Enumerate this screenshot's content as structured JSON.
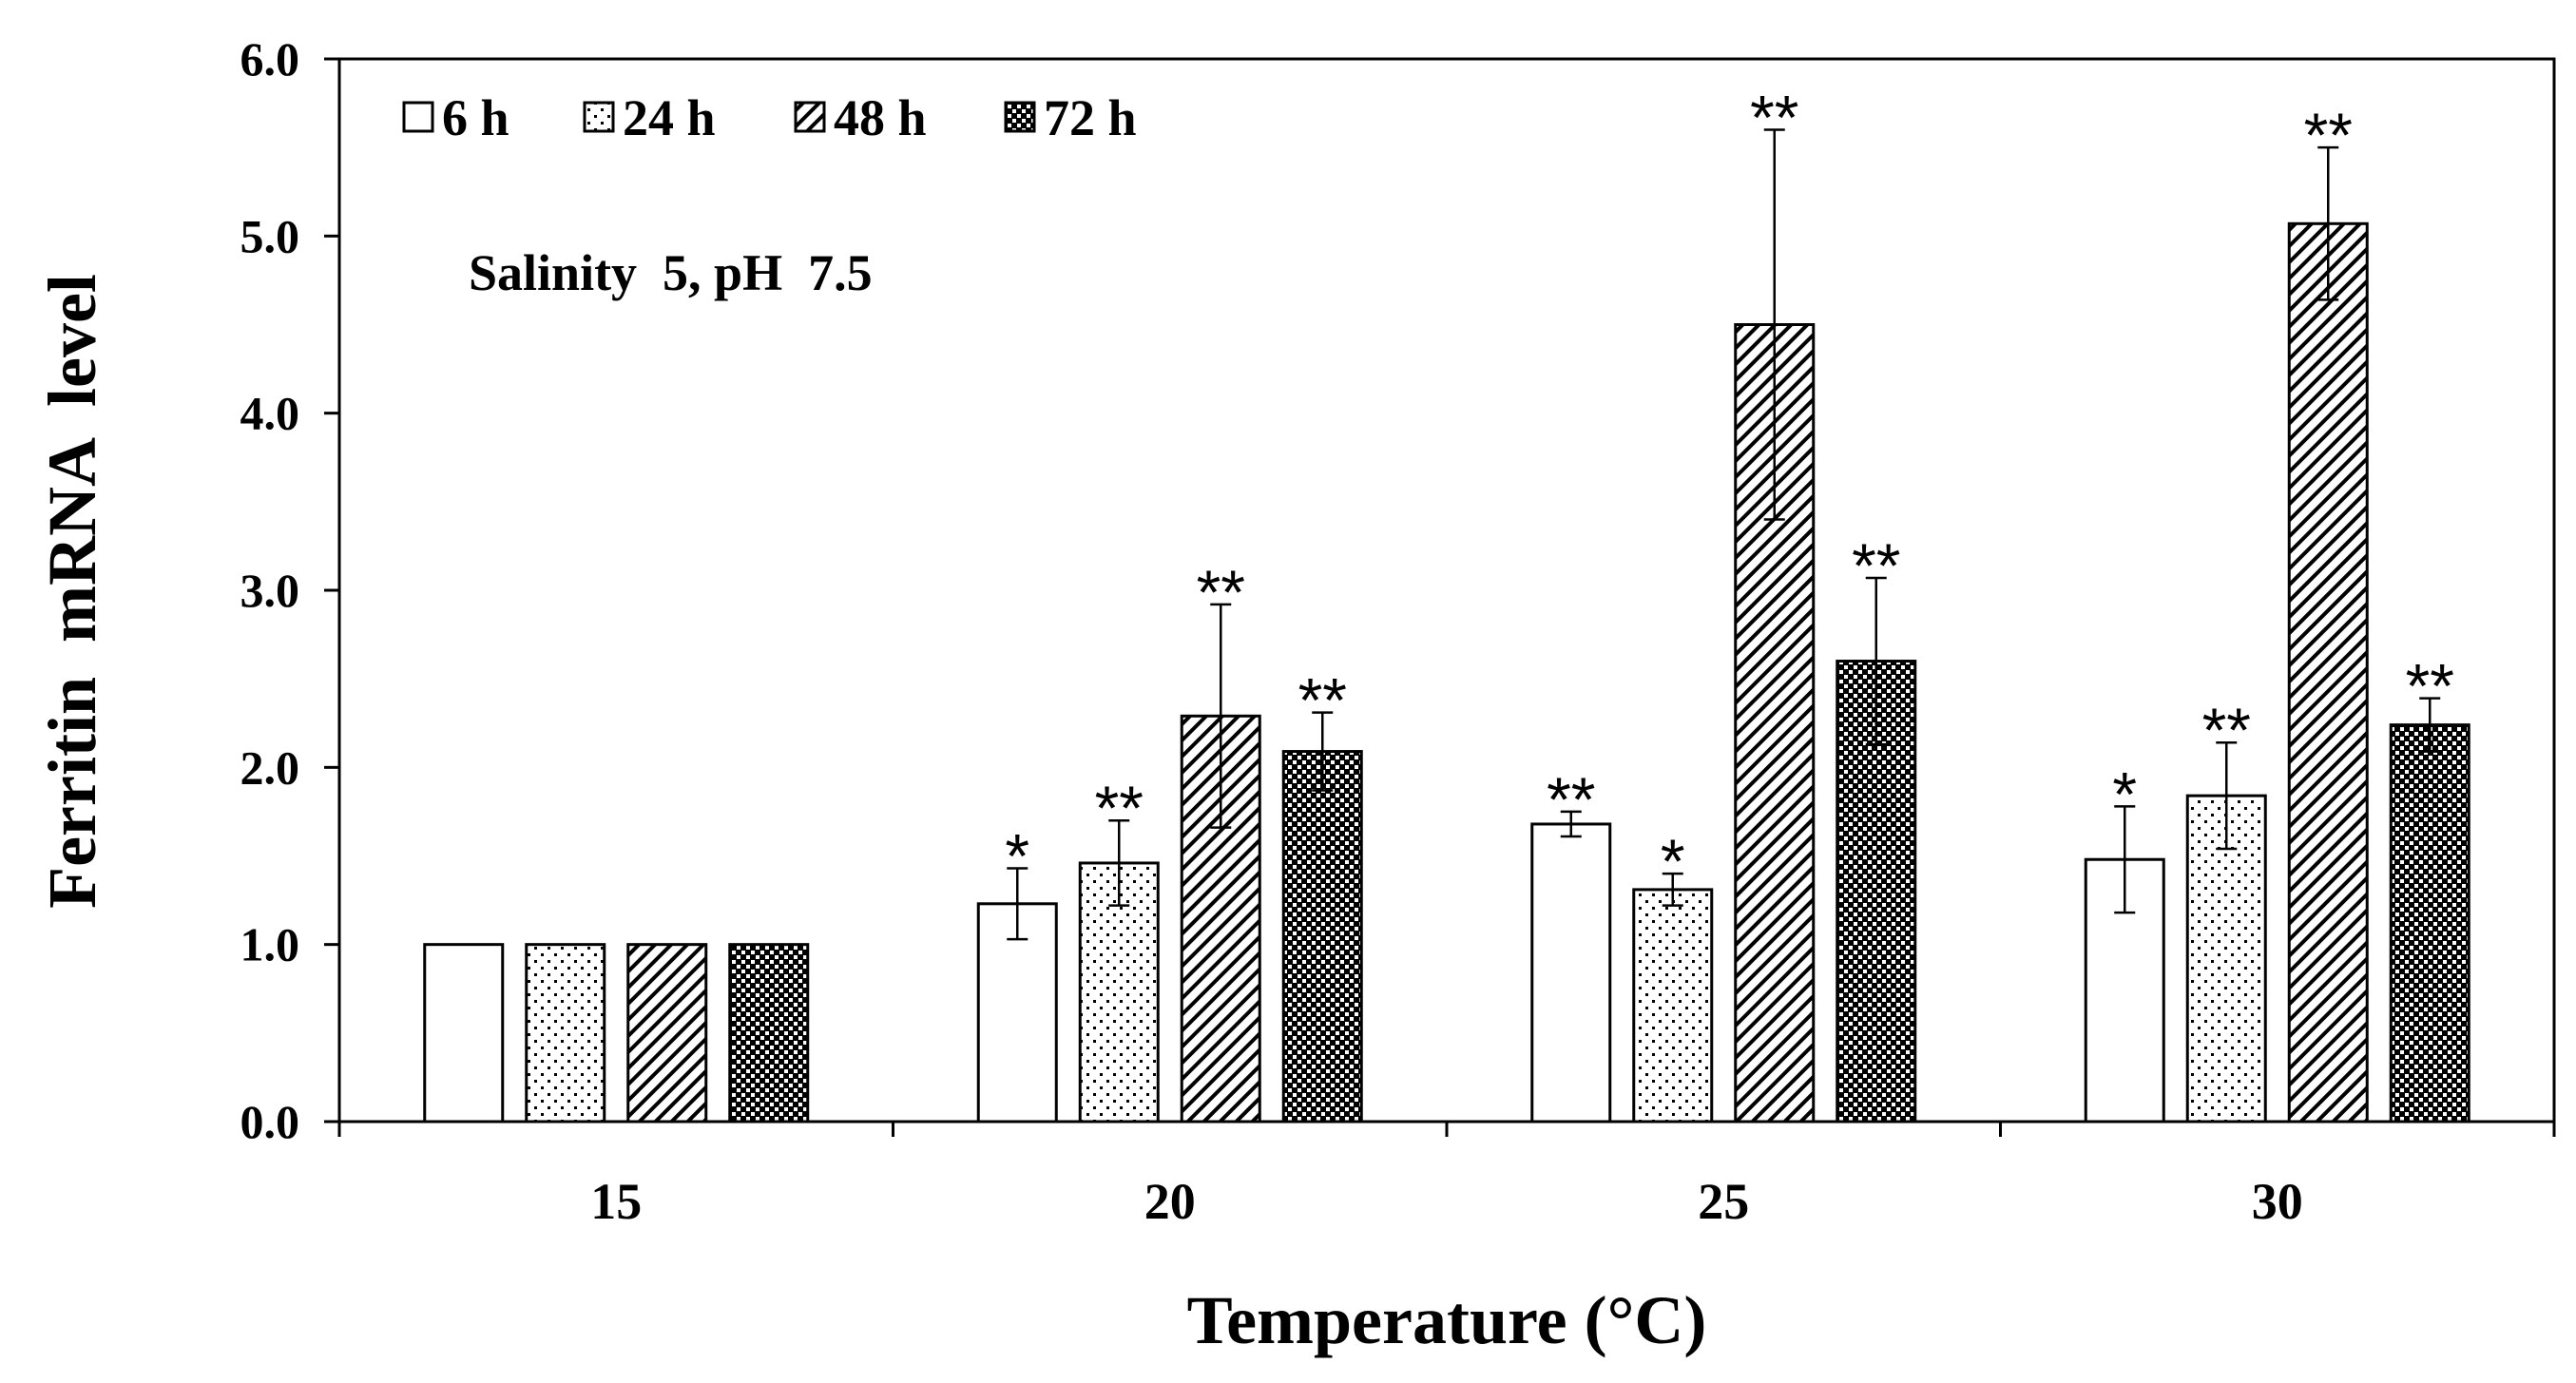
{
  "chart_data": {
    "type": "bar",
    "title": "",
    "annotation": "Salinity  5, pH  7.5",
    "xlabel": "Temperature (°C)",
    "ylabel": "Ferritin  mRNA  level",
    "ylim": [
      0,
      6
    ],
    "yticks": [
      "0.0",
      "1.0",
      "2.0",
      "3.0",
      "4.0",
      "5.0",
      "6.0"
    ],
    "categories": [
      "15",
      "20",
      "25",
      "30"
    ],
    "legend_position": "top-left",
    "series": [
      {
        "name": "6 h",
        "pattern": "plain",
        "values": [
          1.0,
          1.23,
          1.68,
          1.48
        ],
        "errors": [
          0,
          0.2,
          0.07,
          0.3
        ],
        "significance": [
          "",
          "*",
          "**",
          "*"
        ]
      },
      {
        "name": "24 h",
        "pattern": "dots",
        "values": [
          1.0,
          1.46,
          1.31,
          1.84
        ],
        "errors": [
          0,
          0.24,
          0.09,
          0.3
        ],
        "significance": [
          "",
          "**",
          "*",
          "**"
        ]
      },
      {
        "name": "48 h",
        "pattern": "diagonal",
        "values": [
          1.0,
          2.29,
          4.5,
          5.07
        ],
        "errors": [
          0,
          0.63,
          1.1,
          0.43
        ],
        "significance": [
          "",
          "**",
          "**",
          "**"
        ]
      },
      {
        "name": "72 h",
        "pattern": "checker",
        "values": [
          1.0,
          2.09,
          2.6,
          2.24
        ],
        "errors": [
          0,
          0.22,
          0.47,
          0.15
        ],
        "significance": [
          "",
          "**",
          "**",
          "**"
        ]
      }
    ]
  }
}
